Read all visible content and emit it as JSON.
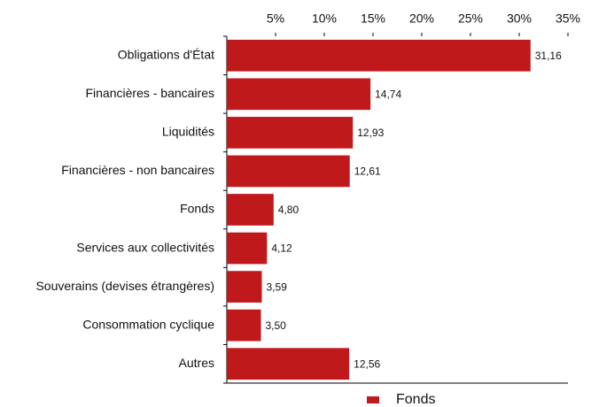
{
  "chart_data": {
    "type": "bar",
    "orientation": "horizontal",
    "categories": [
      "Obligations d'État",
      "Financières - bancaires",
      "Liquidités",
      "Financières - non bancaires",
      "Fonds",
      "Services aux collectivités",
      "Souverains (devises étrangères)",
      "Consommation cyclique",
      "Autres"
    ],
    "series": [
      {
        "name": "Fonds",
        "color": "#c0191b",
        "values": [
          31.16,
          14.74,
          12.93,
          12.61,
          4.8,
          4.12,
          3.59,
          3.5,
          12.56
        ],
        "value_labels": [
          "31,16",
          "14,74",
          "12,93",
          "12,61",
          "4,80",
          "4,12",
          "3,59",
          "3,50",
          "12,56"
        ]
      }
    ],
    "xlim": [
      0,
      35
    ],
    "xticks": [
      {
        "value": 5,
        "label": "5%"
      },
      {
        "value": 10,
        "label": "10%"
      },
      {
        "value": 15,
        "label": "15%"
      },
      {
        "value": 20,
        "label": "20%"
      },
      {
        "value": 25,
        "label": "25%"
      },
      {
        "value": 30,
        "label": "30%"
      },
      {
        "value": 35,
        "label": "35%"
      }
    ],
    "grid": false,
    "legend": "bottom"
  }
}
